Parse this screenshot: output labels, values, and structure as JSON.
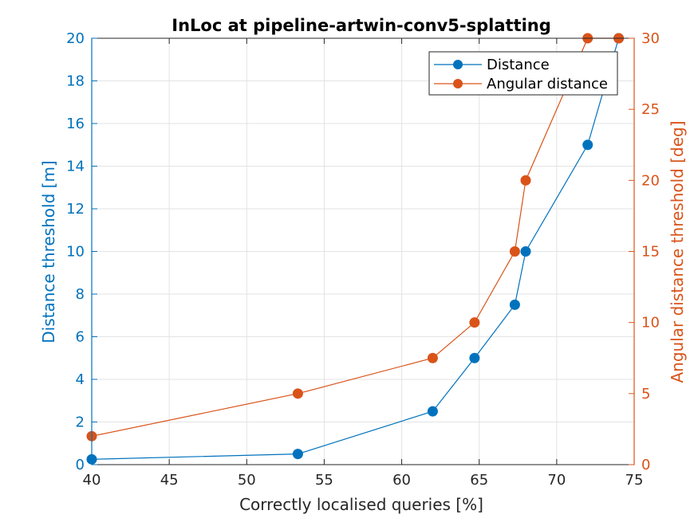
{
  "chart_data": {
    "type": "line",
    "title": "InLoc at pipeline-artwin-conv5-splatting",
    "xlabel": "Correctly localised queries [%]",
    "ylabel_left": "Distance threshold [m]",
    "ylabel_right": "Angular distance threshold [deg]",
    "xlim": [
      40,
      75
    ],
    "ylim_left": [
      0,
      20
    ],
    "ylim_right": [
      0,
      30
    ],
    "xticks": [
      40,
      45,
      50,
      55,
      60,
      65,
      70,
      75
    ],
    "yticks_left": [
      0,
      2,
      4,
      6,
      8,
      10,
      12,
      14,
      16,
      18,
      20
    ],
    "yticks_right": [
      0,
      5,
      10,
      15,
      20,
      25,
      30
    ],
    "grid": true,
    "legend_position": "top-right",
    "series": [
      {
        "name": "Distance",
        "axis": "left",
        "color": "#0072BD",
        "x": [
          40.0,
          53.3,
          62.0,
          64.7,
          67.3,
          68.0,
          72.0,
          74.0
        ],
        "y": [
          0.25,
          0.5,
          2.5,
          5.0,
          7.5,
          10.0,
          15.0,
          20.0
        ]
      },
      {
        "name": "Angular distance",
        "axis": "right",
        "color": "#D95319",
        "x": [
          40.0,
          53.3,
          62.0,
          64.7,
          67.3,
          68.0,
          72.0,
          74.0
        ],
        "y": [
          2.0,
          5.0,
          7.5,
          10.0,
          15.0,
          20.0,
          30.0,
          30.0
        ]
      }
    ]
  }
}
